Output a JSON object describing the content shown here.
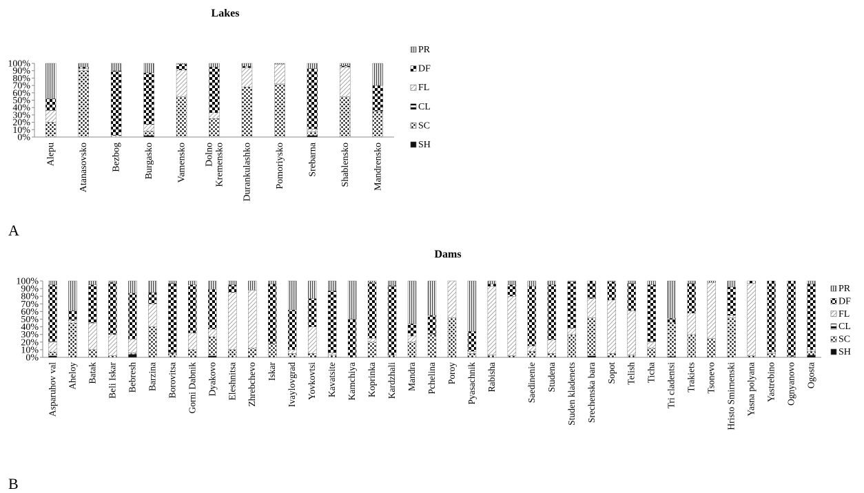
{
  "chart_data": [
    {
      "type": "bar",
      "stacked": "percent",
      "title": "Lakes",
      "panel_label": "A",
      "xlabel": "",
      "ylabel": "",
      "ylim": [
        0,
        100
      ],
      "yticks": [
        "0%",
        "10%",
        "20%",
        "30%",
        "40%",
        "50%",
        "60%",
        "70%",
        "80%",
        "90%",
        "100%"
      ],
      "legend_position": "right",
      "categories": [
        "Alepu",
        "Atanasovsko",
        "Bezbog",
        "Burgasko",
        "Vamensko",
        "Dolno Kremensko",
        "Durankulashko",
        "Pomoriysko",
        "Srebarna",
        "Shablensko",
        "Mandrensko"
      ],
      "series": [
        {
          "name": "SH",
          "values": [
            0,
            0,
            0,
            2,
            0,
            0,
            0,
            0,
            2,
            0,
            0
          ]
        },
        {
          "name": "SC",
          "values": [
            20,
            90,
            0,
            6,
            55,
            25,
            68,
            72,
            5,
            55,
            35
          ]
        },
        {
          "name": "CL",
          "values": [
            0,
            0,
            0,
            0,
            0,
            0,
            0,
            0,
            0,
            0,
            0
          ]
        },
        {
          "name": "FL",
          "values": [
            16,
            3,
            2,
            9,
            36,
            8,
            26,
            27,
            4,
            40,
            0
          ]
        },
        {
          "name": "DF",
          "values": [
            16,
            2,
            88,
            70,
            8,
            62,
            2,
            0,
            82,
            2,
            35
          ]
        },
        {
          "name": "PR",
          "values": [
            48,
            5,
            10,
            13,
            1,
            5,
            4,
            1,
            7,
            3,
            30
          ]
        }
      ]
    },
    {
      "type": "bar",
      "stacked": "percent",
      "title": "Dams",
      "panel_label": "B",
      "xlabel": "",
      "ylabel": "",
      "ylim": [
        0,
        100
      ],
      "yticks": [
        "0%",
        "10%",
        "20%",
        "30%",
        "40%",
        "50%",
        "60%",
        "70%",
        "80%",
        "90%",
        "100%"
      ],
      "legend_position": "right",
      "categories": [
        "Asparuhov val",
        "Aheloy",
        "Batak",
        "Beli Iskar",
        "Bebresh",
        "Barzina",
        "Borovitsa",
        "Gorni Dabnik",
        "Dyakovo",
        "Eleshnitsa",
        "Zhrebchevo",
        "Iskar",
        "Ivaylovgrad",
        "Yovkovtsi",
        "Kavatsite",
        "Kamchiya",
        "Koprinka",
        "Kardzhali",
        "Mandra",
        "Pchelina",
        "Poroy",
        "Pyasachnik",
        "Rabisha",
        "",
        "Saedinenie",
        "Studena",
        "Studen kladenets",
        "Srechenska bara",
        "Sopot",
        "Telish",
        "Ticha",
        "Tri cladentsi",
        "Trakiets",
        "Tsonevo",
        "Hristo Smirnenski",
        "Yasna polyana",
        "Yastrebino",
        "Ognyanovo",
        "Ogosta"
      ],
      "series": [
        {
          "name": "SH",
          "values": [
            2,
            0,
            0,
            0,
            4,
            0,
            0,
            0,
            2,
            0,
            0,
            0,
            0,
            0,
            0,
            0,
            0,
            0,
            0,
            0,
            0,
            0,
            0,
            0,
            0,
            0,
            0,
            2,
            0,
            0,
            0,
            1,
            0,
            0,
            0,
            0,
            0,
            0,
            3
          ]
        },
        {
          "name": "SC",
          "values": [
            5,
            45,
            10,
            2,
            2,
            40,
            5,
            10,
            25,
            10,
            12,
            18,
            5,
            5,
            3,
            0,
            20,
            3,
            20,
            30,
            52,
            5,
            3,
            2,
            8,
            5,
            30,
            50,
            5,
            3,
            12,
            45,
            30,
            25,
            52,
            2,
            5,
            1,
            5
          ]
        },
        {
          "name": "CL",
          "values": [
            0,
            0,
            0,
            0,
            0,
            0,
            0,
            0,
            0,
            0,
            0,
            0,
            0,
            0,
            0,
            0,
            0,
            0,
            0,
            0,
            0,
            0,
            0,
            0,
            0,
            0,
            0,
            0,
            0,
            0,
            0,
            0,
            0,
            0,
            0,
            0,
            0,
            0,
            0
          ]
        },
        {
          "name": "FL",
          "values": [
            13,
            3,
            35,
            28,
            18,
            30,
            0,
            22,
            10,
            75,
            76,
            0,
            5,
            35,
            3,
            0,
            5,
            0,
            8,
            0,
            48,
            3,
            90,
            78,
            7,
            18,
            8,
            25,
            70,
            58,
            8,
            0,
            28,
            73,
            3,
            95,
            2,
            0,
            2
          ]
        },
        {
          "name": "DF",
          "values": [
            75,
            13,
            50,
            68,
            60,
            15,
            92,
            63,
            52,
            10,
            0,
            78,
            52,
            37,
            81,
            50,
            73,
            91,
            16,
            25,
            0,
            26,
            3,
            15,
            78,
            72,
            61,
            23,
            24,
            36,
            75,
            5,
            39,
            0,
            37,
            3,
            93,
            99,
            86
          ]
        },
        {
          "name": "PR",
          "values": [
            5,
            39,
            5,
            2,
            16,
            15,
            3,
            5,
            11,
            5,
            12,
            4,
            38,
            23,
            13,
            50,
            2,
            6,
            56,
            45,
            0,
            66,
            4,
            5,
            7,
            5,
            1,
            0,
            1,
            3,
            5,
            49,
            3,
            2,
            8,
            0,
            0,
            0,
            4
          ]
        }
      ]
    }
  ]
}
